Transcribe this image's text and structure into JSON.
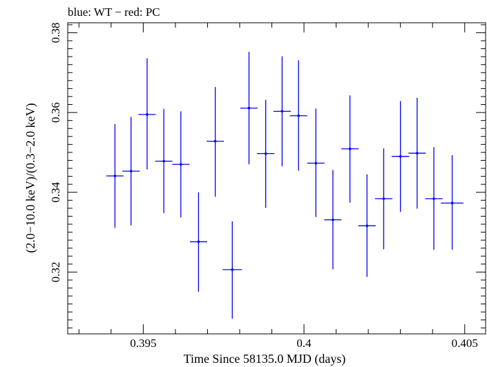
{
  "chart_data": {
    "type": "scatter",
    "title": "blue: WT − red: PC",
    "xlabel": "Time Since 58135.0 MJD (days)",
    "ylabel": "(2.0−10.0 keV)/(0.3−2.0 keV)",
    "xlim": [
      0.39265,
      0.40565
    ],
    "ylim": [
      0.3045,
      0.3825
    ],
    "x_ticks": [
      {
        "value": 0.395,
        "label": "0.395"
      },
      {
        "value": 0.4,
        "label": "0.4"
      },
      {
        "value": 0.405,
        "label": "0.405"
      }
    ],
    "x_minor_ticks": [
      0.393,
      0.394,
      0.396,
      0.397,
      0.398,
      0.399,
      0.401,
      0.402,
      0.403,
      0.404
    ],
    "y_ticks": [
      {
        "value": 0.32,
        "label": "0.32"
      },
      {
        "value": 0.34,
        "label": "0.34"
      },
      {
        "value": 0.36,
        "label": "0.36"
      },
      {
        "value": 0.38,
        "label": "0.38"
      }
    ],
    "y_minor_ticks": [
      0.306,
      0.308,
      0.31,
      0.312,
      0.314,
      0.316,
      0.318,
      0.322,
      0.324,
      0.326,
      0.328,
      0.33,
      0.332,
      0.334,
      0.336,
      0.338,
      0.342,
      0.344,
      0.346,
      0.348,
      0.35,
      0.352,
      0.354,
      0.356,
      0.358,
      0.362,
      0.364,
      0.366,
      0.368,
      0.37,
      0.372,
      0.374,
      0.376,
      0.378,
      0.382
    ],
    "series": [
      {
        "name": "WT",
        "color": "#0000ee",
        "points": [
          {
            "x": 0.39412,
            "y": 0.3441,
            "xerr": 0.00027,
            "yerr_low": 0.013,
            "yerr_high": 0.013
          },
          {
            "x": 0.39462,
            "y": 0.3453,
            "xerr": 0.00027,
            "yerr_low": 0.0136,
            "yerr_high": 0.0136
          },
          {
            "x": 0.39512,
            "y": 0.3595,
            "xerr": 0.00027,
            "yerr_low": 0.0138,
            "yerr_high": 0.0141
          },
          {
            "x": 0.39564,
            "y": 0.3478,
            "xerr": 0.00027,
            "yerr_low": 0.013,
            "yerr_high": 0.0131
          },
          {
            "x": 0.39617,
            "y": 0.347,
            "xerr": 0.00027,
            "yerr_low": 0.0133,
            "yerr_high": 0.0133
          },
          {
            "x": 0.39672,
            "y": 0.3276,
            "xerr": 0.00027,
            "yerr_low": 0.0125,
            "yerr_high": 0.0124
          },
          {
            "x": 0.39724,
            "y": 0.3528,
            "xerr": 0.00027,
            "yerr_low": 0.0139,
            "yerr_high": 0.0136
          },
          {
            "x": 0.39777,
            "y": 0.3206,
            "xerr": 0.0003,
            "yerr_low": 0.0123,
            "yerr_high": 0.0121
          },
          {
            "x": 0.39829,
            "y": 0.3611,
            "xerr": 0.00027,
            "yerr_low": 0.0141,
            "yerr_high": 0.0141
          },
          {
            "x": 0.39881,
            "y": 0.3497,
            "xerr": 0.00027,
            "yerr_low": 0.0136,
            "yerr_high": 0.0135
          },
          {
            "x": 0.39932,
            "y": 0.3603,
            "xerr": 0.00027,
            "yerr_low": 0.0138,
            "yerr_high": 0.0138
          },
          {
            "x": 0.39983,
            "y": 0.3592,
            "xerr": 0.00027,
            "yerr_low": 0.0138,
            "yerr_high": 0.0139
          },
          {
            "x": 0.40037,
            "y": 0.3473,
            "xerr": 0.00027,
            "yerr_low": 0.0135,
            "yerr_high": 0.0137
          },
          {
            "x": 0.4009,
            "y": 0.3331,
            "xerr": 0.00027,
            "yerr_low": 0.0124,
            "yerr_high": 0.0125
          },
          {
            "x": 0.40143,
            "y": 0.3509,
            "xerr": 0.00027,
            "yerr_low": 0.0135,
            "yerr_high": 0.0134
          },
          {
            "x": 0.40196,
            "y": 0.3316,
            "xerr": 0.00027,
            "yerr_low": 0.0128,
            "yerr_high": 0.0129
          },
          {
            "x": 0.40248,
            "y": 0.3384,
            "xerr": 0.00027,
            "yerr_low": 0.0127,
            "yerr_high": 0.0126
          },
          {
            "x": 0.403,
            "y": 0.349,
            "xerr": 0.00027,
            "yerr_low": 0.0139,
            "yerr_high": 0.0139
          },
          {
            "x": 0.40352,
            "y": 0.3498,
            "xerr": 0.00027,
            "yerr_low": 0.0139,
            "yerr_high": 0.0139
          },
          {
            "x": 0.40404,
            "y": 0.3384,
            "xerr": 0.00027,
            "yerr_low": 0.0128,
            "yerr_high": 0.0129
          },
          {
            "x": 0.40461,
            "y": 0.3373,
            "xerr": 0.00035,
            "yerr_low": 0.0117,
            "yerr_high": 0.012
          }
        ]
      }
    ]
  }
}
